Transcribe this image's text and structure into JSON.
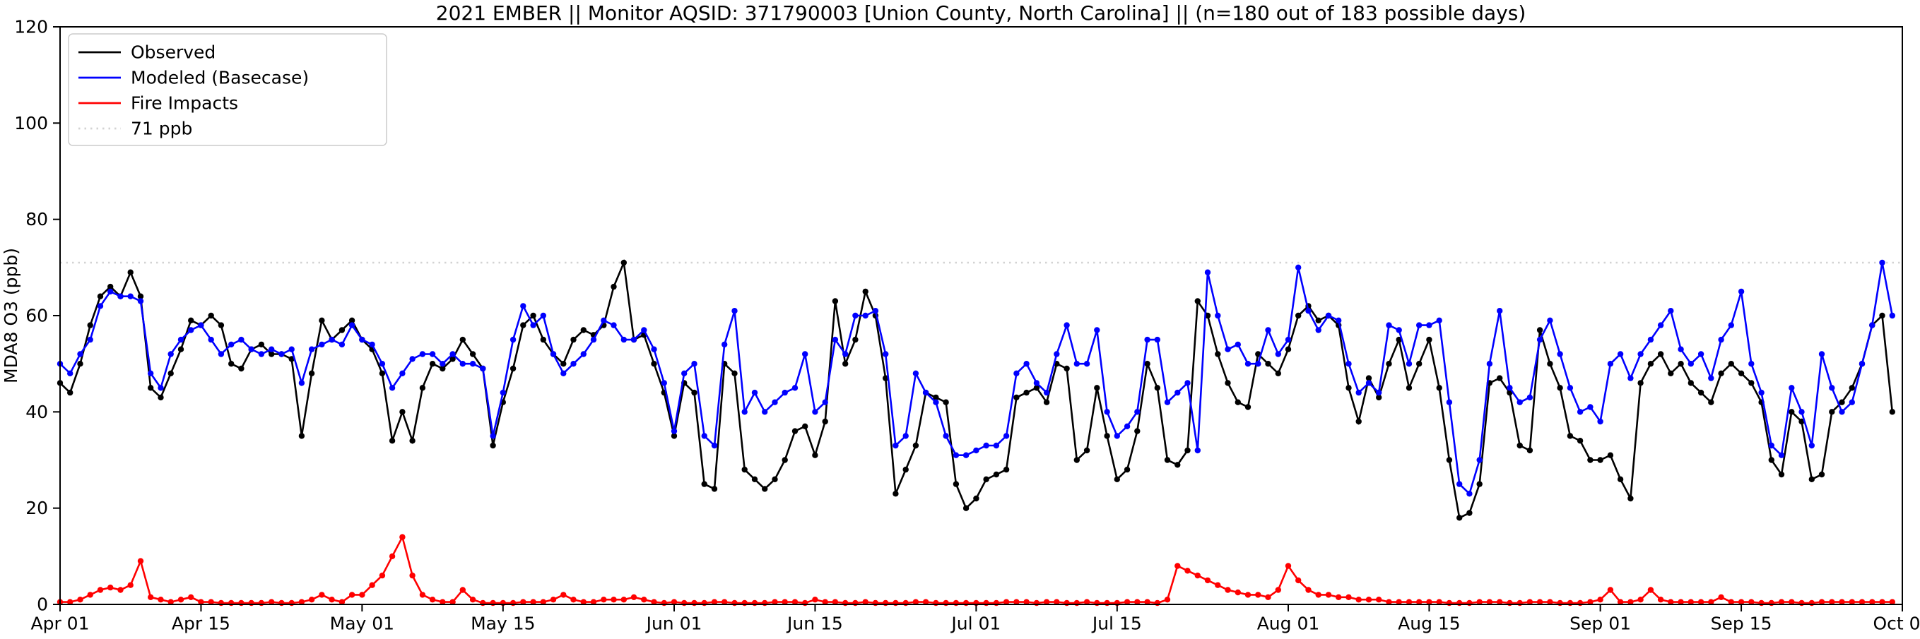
{
  "chart_data": {
    "type": "line",
    "title": "2021 EMBER || Monitor AQSID: 371790003 [Union County, North Carolina] || (n=180 out of 183 possible days)",
    "xlabel": "",
    "ylabel": "MDA8 O3 (ppb)",
    "ylim": [
      0,
      120
    ],
    "yticks": [
      0,
      20,
      40,
      60,
      80,
      100,
      120
    ],
    "grid": "off",
    "x_total_days": 183,
    "x_range": [
      "Apr 01",
      "Oct 01"
    ],
    "x_tick_labels": [
      "Apr 01",
      "Apr 15",
      "May 01",
      "May 15",
      "Jun 01",
      "Jun 15",
      "Jul 01",
      "Jul 15",
      "Aug 01",
      "Aug 15",
      "Sep 01",
      "Sep 15",
      "Oct 01"
    ],
    "x_tick_positions": [
      0,
      14,
      30,
      44,
      61,
      75,
      91,
      105,
      122,
      136,
      153,
      167,
      183
    ],
    "threshold": {
      "value": 71,
      "label": "71 ppb",
      "color": "#d3d3d3",
      "style": "dotted"
    },
    "legend": {
      "position": "upper-left",
      "entries": [
        "Observed",
        "Modeled (Basecase)",
        "Fire Impacts",
        "71 ppb"
      ]
    },
    "series": [
      {
        "name": "Observed",
        "color": "#000000",
        "values": [
          46,
          44,
          50,
          58,
          64,
          66,
          64,
          69,
          64,
          45,
          43,
          48,
          53,
          59,
          58,
          60,
          58,
          50,
          49,
          53,
          54,
          52,
          52,
          51,
          35,
          48,
          59,
          55,
          57,
          59,
          55,
          53,
          48,
          34,
          40,
          34,
          45,
          50,
          49,
          51,
          55,
          52,
          49,
          33,
          42,
          49,
          58,
          60,
          55,
          52,
          50,
          55,
          57,
          56,
          58,
          66,
          71,
          55,
          56,
          50,
          44,
          35,
          46,
          44,
          25,
          24,
          50,
          48,
          28,
          26,
          24,
          26,
          30,
          36,
          37,
          31,
          38,
          63,
          50,
          55,
          65,
          60,
          47,
          23,
          28,
          33,
          44,
          43,
          42,
          25,
          20,
          22,
          26,
          27,
          28,
          43,
          44,
          45,
          42,
          50,
          49,
          30,
          32,
          45,
          35,
          26,
          28,
          36,
          50,
          45,
          30,
          29,
          32,
          63,
          60,
          52,
          46,
          42,
          41,
          52,
          50,
          48,
          53,
          60,
          62,
          59,
          60,
          58,
          45,
          38,
          47,
          43,
          50,
          55,
          45,
          50,
          55,
          45,
          30,
          18,
          19,
          25,
          46,
          47,
          44,
          33,
          32,
          57,
          50,
          45,
          35,
          34,
          30,
          30,
          31,
          26,
          22,
          46,
          50,
          52,
          48,
          50,
          46,
          44,
          42,
          48,
          50,
          48,
          46,
          42,
          30,
          27,
          40,
          38,
          26,
          27,
          40,
          42,
          45,
          50,
          58,
          60,
          40
        ]
      },
      {
        "name": "Modeled (Basecase)",
        "color": "#0000ff",
        "values": [
          50,
          48,
          52,
          55,
          62,
          65,
          64,
          64,
          63,
          48,
          45,
          52,
          55,
          57,
          58,
          55,
          52,
          54,
          55,
          53,
          52,
          53,
          52,
          53,
          46,
          53,
          54,
          55,
          54,
          58,
          55,
          54,
          50,
          45,
          48,
          51,
          52,
          52,
          50,
          52,
          50,
          50,
          49,
          35,
          44,
          55,
          62,
          58,
          60,
          52,
          48,
          50,
          52,
          55,
          59,
          58,
          55,
          55,
          57,
          53,
          46,
          36,
          48,
          50,
          35,
          33,
          54,
          61,
          40,
          44,
          40,
          42,
          44,
          45,
          52,
          40,
          42,
          55,
          52,
          60,
          60,
          61,
          52,
          33,
          35,
          48,
          44,
          42,
          35,
          31,
          31,
          32,
          33,
          33,
          35,
          48,
          50,
          46,
          44,
          52,
          58,
          50,
          50,
          57,
          40,
          35,
          37,
          40,
          55,
          55,
          42,
          44,
          46,
          32,
          69,
          60,
          53,
          54,
          50,
          50,
          57,
          52,
          55,
          70,
          61,
          57,
          60,
          59,
          50,
          44,
          46,
          44,
          58,
          57,
          50,
          58,
          58,
          59,
          42,
          25,
          23,
          30,
          50,
          61,
          45,
          42,
          43,
          55,
          59,
          52,
          45,
          40,
          41,
          38,
          50,
          52,
          47,
          52,
          55,
          58,
          61,
          53,
          50,
          52,
          47,
          55,
          58,
          65,
          50,
          44,
          33,
          31,
          45,
          40,
          33,
          52,
          45,
          40,
          42,
          50,
          58,
          71,
          60
        ]
      },
      {
        "name": "Fire Impacts",
        "color": "#ff0000",
        "values": [
          0.5,
          0.5,
          1,
          2,
          3,
          3.5,
          3,
          4,
          9,
          1.5,
          1,
          0.5,
          1,
          1.5,
          0.5,
          0.5,
          0.3,
          0.3,
          0.3,
          0.3,
          0.3,
          0.5,
          0.3,
          0.3,
          0.5,
          1,
          2,
          1,
          0.5,
          2,
          2,
          4,
          6,
          10,
          14,
          6,
          2,
          1,
          0.5,
          0.5,
          3,
          1,
          0.3,
          0.3,
          0.3,
          0.3,
          0.5,
          0.5,
          0.5,
          1,
          2,
          1,
          0.5,
          0.5,
          1,
          1,
          1,
          1.5,
          1,
          0.5,
          0.3,
          0.5,
          0.3,
          0.3,
          0.3,
          0.5,
          0.5,
          0.3,
          0.3,
          0.3,
          0.3,
          0.5,
          0.5,
          0.5,
          0.3,
          1,
          0.5,
          0.5,
          0.3,
          0.3,
          0.5,
          0.3,
          0.3,
          0.3,
          0.3,
          0.5,
          0.5,
          0.3,
          0.3,
          0.3,
          0.3,
          0.3,
          0.3,
          0.3,
          0.5,
          0.5,
          0.5,
          0.3,
          0.5,
          0.5,
          0.3,
          0.3,
          0.5,
          0.3,
          0.3,
          0.3,
          0.5,
          0.5,
          0.5,
          0.3,
          1,
          8,
          7,
          6,
          5,
          4,
          3,
          2.5,
          2,
          2,
          1.5,
          3,
          8,
          5,
          3,
          2,
          2,
          1.5,
          1.5,
          1,
          1,
          1,
          0.5,
          0.5,
          0.5,
          0.5,
          0.5,
          0.5,
          0.3,
          0.3,
          0.3,
          0.5,
          0.5,
          0.5,
          0.3,
          0.3,
          0.5,
          0.5,
          0.5,
          0.3,
          0.3,
          0.3,
          0.5,
          1,
          3,
          0.5,
          0.5,
          1,
          3,
          1,
          0.5,
          0.5,
          0.5,
          0.5,
          0.5,
          1.5,
          0.5,
          0.5,
          0.5,
          0.3,
          0.3,
          0.5,
          0.5,
          0.3,
          0.3,
          0.5,
          0.5,
          0.5,
          0.5,
          0.5,
          0.5,
          0.5,
          0.5
        ]
      }
    ]
  }
}
